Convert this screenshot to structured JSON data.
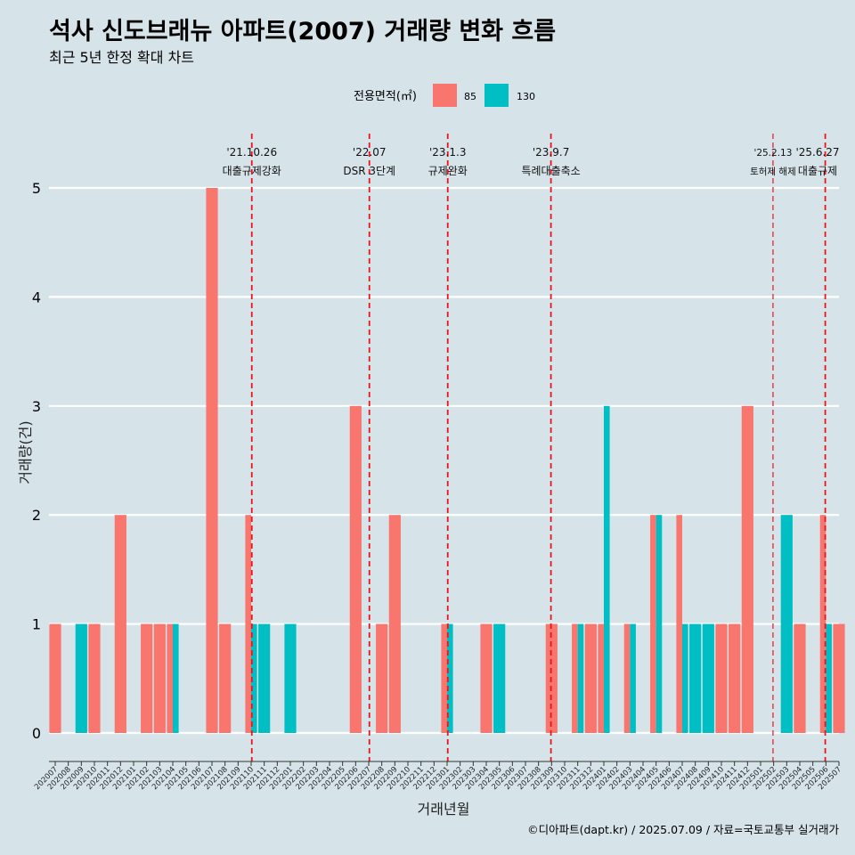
{
  "title": "석사 신도브래뉴 아파트(2007) 거래량 변화 흐름",
  "subtitle": "최근 5년 한정 확대 차트",
  "caption": "©디아파트(dapt.kr) / 2025.07.09 / 자료=국토교통부 실거래가",
  "legend": {
    "title": "전용면적(㎡)",
    "items": [
      {
        "label": "85",
        "color": "#f8766d"
      },
      {
        "label": "130",
        "color": "#00bfc4"
      }
    ]
  },
  "chart_data": {
    "type": "bar",
    "xlabel": "거래년월",
    "ylabel": "거래량(건)",
    "ylim": [
      0,
      5
    ],
    "yticks": [
      0,
      1,
      2,
      3,
      4,
      5
    ],
    "grid": true,
    "legend_position": "top",
    "categories": [
      "202007",
      "202008",
      "202009",
      "202010",
      "202011",
      "202012",
      "202101",
      "202102",
      "202103",
      "202104",
      "202105",
      "202106",
      "202107",
      "202108",
      "202109",
      "202110",
      "202111",
      "202112",
      "202201",
      "202202",
      "202203",
      "202204",
      "202205",
      "202206",
      "202207",
      "202208",
      "202209",
      "202210",
      "202211",
      "202212",
      "202301",
      "202302",
      "202303",
      "202304",
      "202305",
      "202306",
      "202307",
      "202308",
      "202309",
      "202310",
      "202311",
      "202312",
      "202401",
      "202402",
      "202403",
      "202404",
      "202405",
      "202406",
      "202407",
      "202408",
      "202409",
      "202410",
      "202411",
      "202412",
      "202501",
      "202502",
      "202503",
      "202504",
      "202505",
      "202506",
      "202507"
    ],
    "series": [
      {
        "name": "85",
        "color": "#f8766d",
        "values": [
          1,
          0,
          0,
          1,
          0,
          2,
          0,
          1,
          1,
          1,
          0,
          0,
          5,
          1,
          0,
          2,
          0,
          0,
          0,
          0,
          0,
          0,
          0,
          3,
          0,
          1,
          2,
          0,
          0,
          0,
          1,
          0,
          0,
          1,
          0,
          0,
          0,
          0,
          1,
          0,
          1,
          1,
          1,
          0,
          1,
          0,
          2,
          0,
          2,
          0,
          0,
          1,
          1,
          3,
          0,
          0,
          0,
          1,
          0,
          2,
          1
        ]
      },
      {
        "name": "130",
        "color": "#00bfc4",
        "values": [
          0,
          0,
          1,
          0,
          0,
          0,
          0,
          0,
          0,
          1,
          0,
          0,
          0,
          0,
          0,
          1,
          1,
          0,
          1,
          0,
          0,
          0,
          0,
          0,
          0,
          0,
          0,
          0,
          0,
          0,
          1,
          0,
          0,
          0,
          1,
          0,
          0,
          0,
          0,
          0,
          1,
          0,
          3,
          0,
          1,
          0,
          2,
          0,
          1,
          1,
          1,
          0,
          0,
          0,
          0,
          0,
          2,
          0,
          0,
          1,
          0
        ]
      }
    ],
    "annotations": [
      {
        "x": "202110",
        "date": "'21.10.26",
        "label": "대출규제강화",
        "small": false
      },
      {
        "x": "202207",
        "date": "'22.07",
        "label": "DSR 3단계",
        "small": false
      },
      {
        "x": "202301",
        "date": "'23.1.3",
        "label": "규제완화",
        "small": false
      },
      {
        "x": "202309",
        "date": "'23.9.7",
        "label": "특례대출축소",
        "small": false
      },
      {
        "x": "202502",
        "date": "'25.2.13",
        "label": "토허제 해제",
        "small": true
      },
      {
        "x": "202506",
        "date": "'25.6.27",
        "label": "대출규제",
        "small": false
      }
    ]
  }
}
